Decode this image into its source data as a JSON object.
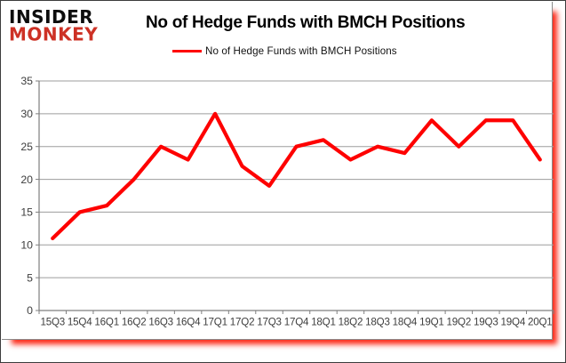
{
  "logo": {
    "line1": "INSIDER",
    "line2": "MONKEY",
    "line1_color": "#0d0d0d",
    "line2_color": "#cd3125"
  },
  "header": {
    "title": "No of Hedge Funds with BMCH Positions"
  },
  "legend": {
    "label": "No of Hedge Funds with BMCH Positions",
    "line_color": "#fe0000"
  },
  "chart_data": {
    "type": "line",
    "title": "No of Hedge Funds with BMCH Positions",
    "categories": [
      "15Q3",
      "15Q4",
      "16Q1",
      "16Q2",
      "16Q3",
      "16Q4",
      "17Q1",
      "17Q2",
      "17Q3",
      "17Q4",
      "18Q1",
      "18Q2",
      "18Q3",
      "18Q4",
      "19Q1",
      "19Q2",
      "19Q3",
      "19Q4",
      "20Q1"
    ],
    "values": [
      11,
      15,
      16,
      20,
      25,
      23,
      30,
      22,
      19,
      25,
      26,
      23,
      25,
      24,
      29,
      25,
      29,
      29,
      23
    ],
    "series": [
      {
        "name": "No of Hedge Funds with BMCH Positions",
        "values": [
          11,
          15,
          16,
          20,
          25,
          23,
          30,
          22,
          19,
          25,
          26,
          23,
          25,
          24,
          29,
          25,
          29,
          29,
          23
        ]
      }
    ],
    "xlabel": "",
    "ylabel": "",
    "ylim": [
      0,
      35
    ],
    "ytick_step": 5,
    "ytick_labels": [
      "0",
      "5",
      "10",
      "15",
      "20",
      "25",
      "30",
      "35"
    ],
    "grid": "horizontal",
    "legend_position": "top",
    "line_color": "#fe0000",
    "gridline_color": "#9d9d9d",
    "axis_color": "#7f7f7f",
    "tick_label_color": "#3d3d3d"
  }
}
